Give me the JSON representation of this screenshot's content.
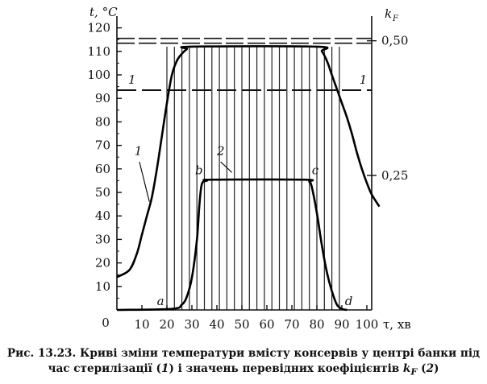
{
  "chart_data": {
    "type": "line",
    "xlabel": "τ, хв",
    "ylabel_left": "t, °C",
    "ylabel_right": "k",
    "ylabel_right_subscript": "F",
    "xlim": [
      0,
      105
    ],
    "ylim_left": [
      0,
      125
    ],
    "ylim_right": [
      0,
      0.5227
    ],
    "x_ticks": [
      "0",
      "10",
      "20",
      "30",
      "40",
      "50",
      "60",
      "70",
      "80",
      "90",
      "100"
    ],
    "y_ticks_left": [
      "10",
      "20",
      "30",
      "40",
      "50",
      "60",
      "70",
      "80",
      "90",
      "100",
      "110",
      "120"
    ],
    "y_ticks_right": [
      "0,25",
      "0,50"
    ],
    "grid": "vertical lines every 3 min between 20 and 89 min (integration intervals)",
    "series": [
      {
        "name": "1",
        "axis": "left",
        "points": [
          [
            0,
            14
          ],
          [
            5,
            17
          ],
          [
            8,
            24
          ],
          [
            10,
            32
          ],
          [
            12,
            40
          ],
          [
            14,
            48
          ],
          [
            16,
            60
          ],
          [
            18,
            74
          ],
          [
            20,
            88
          ],
          [
            22,
            100
          ],
          [
            24,
            106
          ],
          [
            26,
            109
          ],
          [
            28,
            111
          ],
          [
            30,
            112
          ],
          [
            80,
            112
          ],
          [
            82,
            110
          ],
          [
            84,
            106
          ],
          [
            86,
            100
          ],
          [
            88,
            94
          ],
          [
            90,
            88
          ],
          [
            92,
            82
          ],
          [
            94,
            75
          ],
          [
            96,
            67
          ],
          [
            98,
            60
          ],
          [
            100,
            54
          ],
          [
            102,
            49
          ],
          [
            105,
            44
          ]
        ]
      },
      {
        "name": "2",
        "axis": "right",
        "points": [
          [
            0,
            0
          ],
          [
            22,
            0.002
          ],
          [
            26,
            0.01
          ],
          [
            28,
            0.025
          ],
          [
            30,
            0.06
          ],
          [
            32,
            0.13
          ],
          [
            33,
            0.195
          ],
          [
            34,
            0.234
          ],
          [
            36,
            0.24
          ],
          [
            38,
            0.242
          ],
          [
            75,
            0.242
          ],
          [
            77,
            0.238
          ],
          [
            78,
            0.228
          ],
          [
            80,
            0.18
          ],
          [
            82,
            0.12
          ],
          [
            84,
            0.07
          ],
          [
            86,
            0.035
          ],
          [
            88,
            0.01
          ],
          [
            90,
            0.002
          ],
          [
            92,
            0
          ]
        ]
      }
    ],
    "reference_lines": [
      {
        "label": "1",
        "style": "dashed",
        "axis": "left",
        "y": 93.5
      },
      {
        "label": "",
        "style": "double dashed",
        "axis": "right",
        "y": 0.5
      }
    ],
    "annotations": [
      {
        "text": "a",
        "x": 20
      },
      {
        "text": "b",
        "x": 34
      },
      {
        "text": "c",
        "x": 77
      },
      {
        "text": "d",
        "x": 90
      },
      {
        "text": "1",
        "series": "1"
      },
      {
        "text": "2",
        "series": "2"
      }
    ],
    "origin_label": "0"
  },
  "caption": {
    "line1": "Рис. 13.23. Криві зміни температури вмісту консервів у центрі банки під",
    "line2_pre": "час стерилізації (",
    "line2_series1": "1",
    "line2_mid": ") і значень перевідних коефіцієнтів ",
    "line2_k": "k",
    "line2_k_sub": "F",
    "line2_paren": " (",
    "line2_series2": "2",
    "line2_end": ")"
  }
}
